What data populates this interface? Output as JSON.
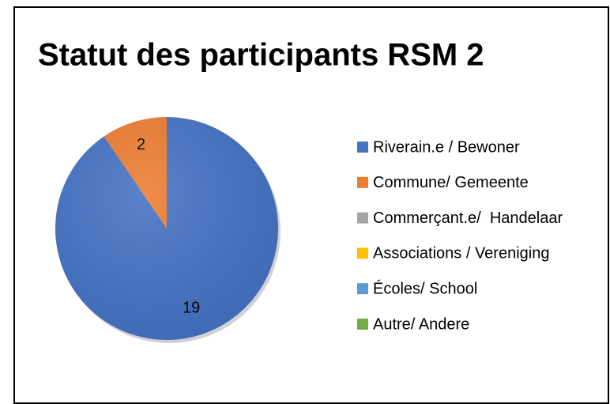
{
  "chart_data": {
    "type": "pie",
    "title": "Statut des participants RSM 2",
    "categories": [
      "Riverain.e / Bewoner",
      "Commune/ Gemeente",
      "Commerçant.e/  Handelaar",
      "Associations / Vereniging",
      "Écoles/ School",
      "Autre/ Andere"
    ],
    "values": [
      19,
      2,
      0,
      0,
      0,
      0
    ],
    "colors": [
      "#4472c4",
      "#ed7d31",
      "#a5a5a5",
      "#ffc000",
      "#5b9bd5",
      "#70ad47"
    ],
    "legend": "right"
  }
}
